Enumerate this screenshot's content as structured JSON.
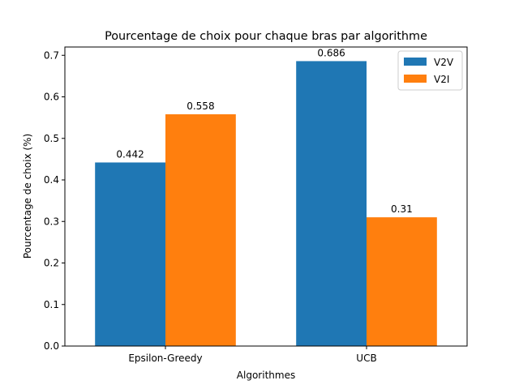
{
  "chart_data": {
    "type": "bar",
    "title": "Pourcentage de choix pour chaque bras par algorithme",
    "xlabel": "Algorithmes",
    "ylabel": "Pourcentage de choix (%)",
    "categories": [
      "Epsilon-Greedy",
      "UCB"
    ],
    "series": [
      {
        "name": "V2V",
        "values": [
          0.442,
          0.686
        ],
        "labels": [
          "0.442",
          "0.686"
        ],
        "color": "#1f77b4"
      },
      {
        "name": "V2I",
        "values": [
          0.558,
          0.31
        ],
        "labels": [
          "0.558",
          "0.31"
        ],
        "color": "#ff7f0e"
      }
    ],
    "ylim": [
      0,
      0.72
    ],
    "yticks": [
      0.0,
      0.1,
      0.2,
      0.3,
      0.4,
      0.5,
      0.6,
      0.7
    ],
    "ytick_labels": [
      "0.0",
      "0.1",
      "0.2",
      "0.3",
      "0.4",
      "0.5",
      "0.6",
      "0.7"
    ],
    "grid": false,
    "legend_position": "top-right"
  }
}
